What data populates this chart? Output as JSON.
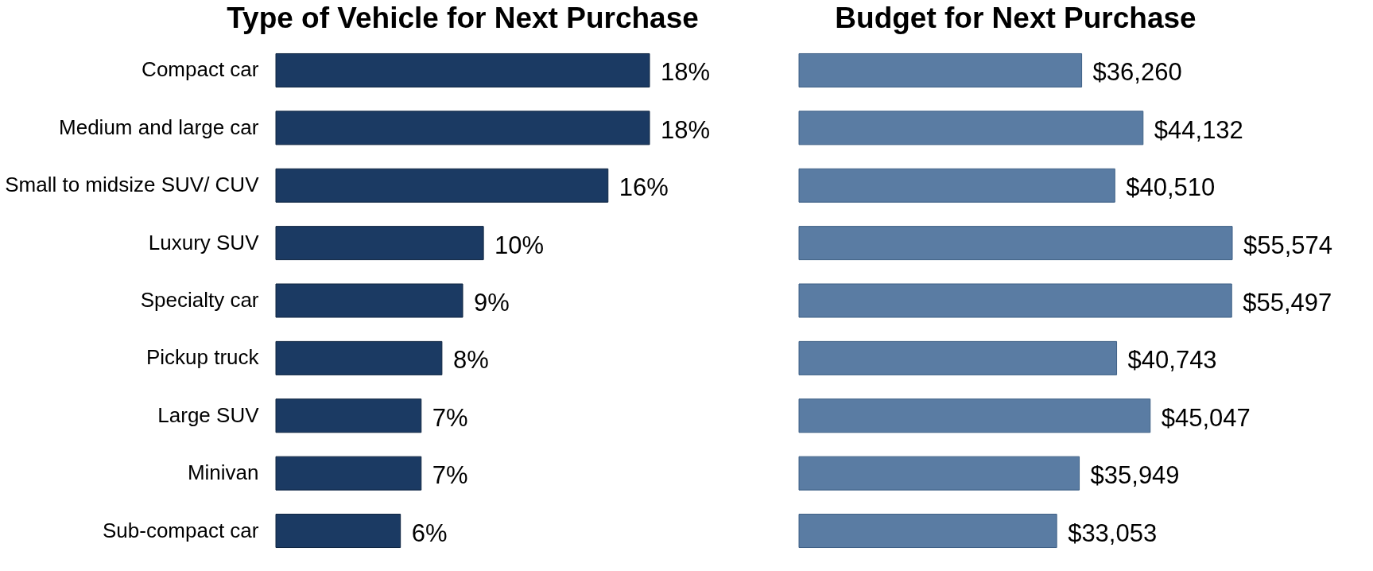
{
  "chart_data": [
    {
      "type": "bar",
      "orientation": "horizontal",
      "title": "Type of Vehicle for Next Purchase",
      "categories": [
        "Compact car",
        "Medium and large car",
        "Small to midsize SUV/ CUV",
        "Luxury SUV",
        "Specialty car",
        "Pickup truck",
        "Large SUV",
        "Minivan",
        "Sub-compact car"
      ],
      "values": [
        18,
        18,
        16,
        10,
        9,
        8,
        7,
        7,
        6
      ],
      "value_labels": [
        "18%",
        "18%",
        "16%",
        "10%",
        "9%",
        "8%",
        "7%",
        "7%",
        "6%"
      ],
      "color": "#1b3a63",
      "tick_labels": "y"
    },
    {
      "type": "bar",
      "orientation": "horizontal",
      "title": "Budget for Next Purchase",
      "categories": [
        null,
        null,
        null,
        null,
        null,
        null,
        null,
        null,
        null
      ],
      "values": [
        36260,
        44132,
        40510,
        55574,
        55497,
        40743,
        45047,
        35949,
        33053
      ],
      "value_labels": [
        "$36,260",
        "$44,132",
        "$40,510",
        "$55,574",
        "$55,497",
        "$40,743",
        "$45,047",
        "$35,949",
        "$33,053"
      ],
      "color": "#5a7ca3",
      "tick_labels": false
    }
  ]
}
